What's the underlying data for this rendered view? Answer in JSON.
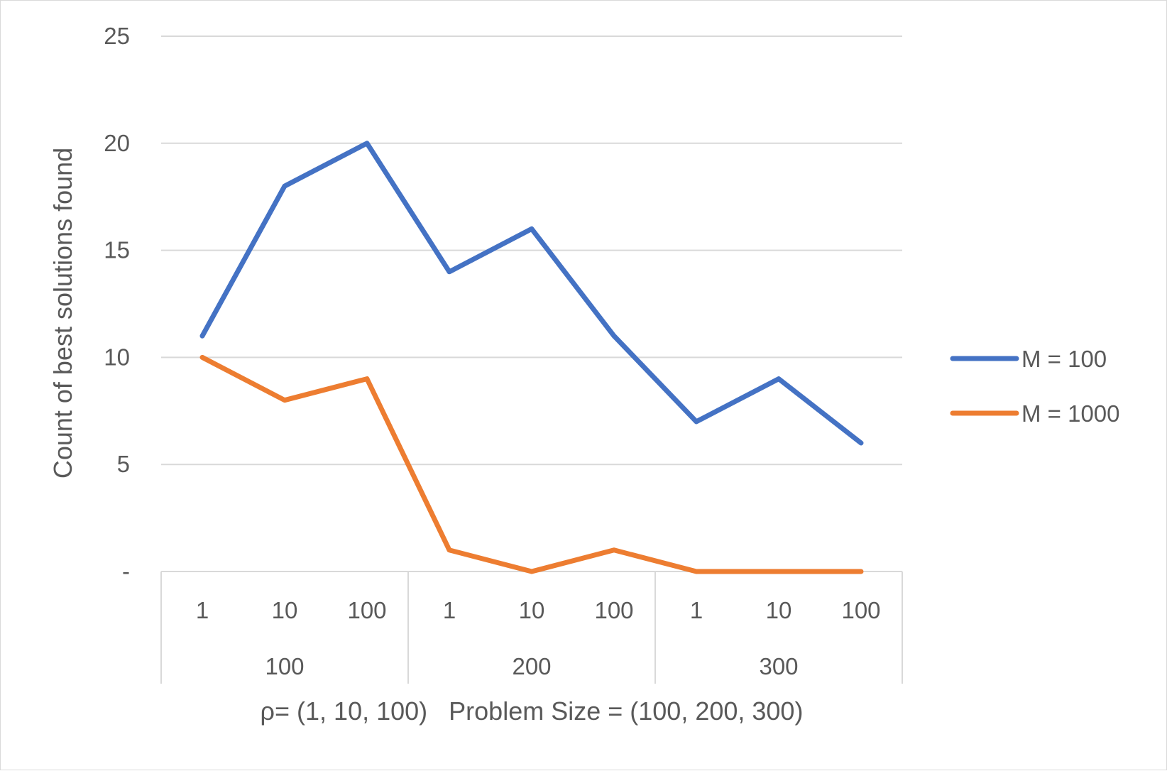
{
  "chart_data": {
    "type": "line",
    "title": "",
    "ylabel": "Count of best solutions found",
    "xlabel": "ρ= (1, 10, 100)   Problem Size = (100, 200, 300)",
    "ylim": [
      0,
      25
    ],
    "yticks": [
      0,
      5,
      10,
      15,
      20,
      25
    ],
    "ytick_labels": [
      "-",
      "5",
      "10",
      "15",
      "20",
      "25"
    ],
    "grid": true,
    "legend_position": "right",
    "categories": [
      "1",
      "10",
      "100",
      "1",
      "10",
      "100",
      "1",
      "10",
      "100"
    ],
    "groups": [
      "100",
      "200",
      "300"
    ],
    "series": [
      {
        "name": "M = 100",
        "color": "#4472c4",
        "values": [
          11,
          18,
          20,
          14,
          16,
          11,
          7,
          9,
          6
        ]
      },
      {
        "name": "M = 1000",
        "color": "#ed7d31",
        "values": [
          10,
          8,
          9,
          1,
          0,
          1,
          0,
          0,
          0
        ]
      }
    ]
  }
}
